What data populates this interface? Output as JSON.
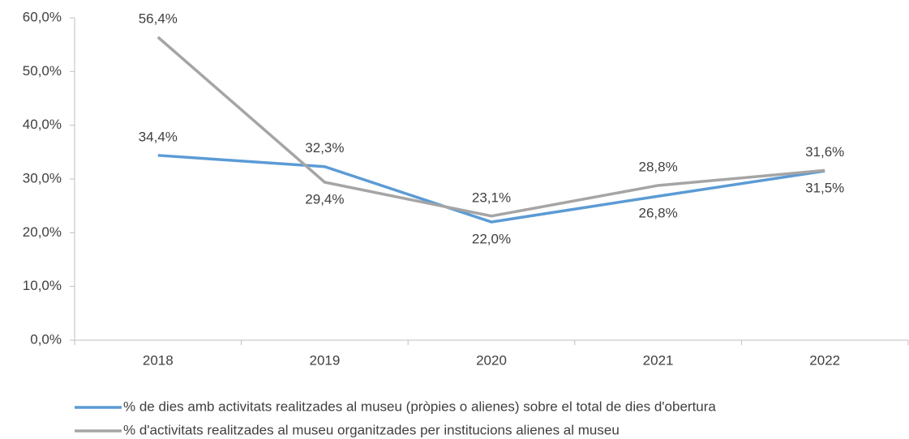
{
  "chart_data": {
    "type": "line",
    "categories": [
      "2018",
      "2019",
      "2020",
      "2021",
      "2022"
    ],
    "series": [
      {
        "name": "% de dies amb activitats realitzades al museu (pròpies o alienes) sobre el total de dies d'obertura",
        "color": "#5b9bd5",
        "values": [
          34.4,
          32.3,
          22.0,
          26.8,
          31.5
        ],
        "value_labels": [
          "34,4%",
          "32,3%",
          "22,0%",
          "26,8%",
          "31,5%"
        ]
      },
      {
        "name": "% d'activitats realitzades al museu organitzades per institucions alienes al museu",
        "color": "#a5a5a5",
        "values": [
          56.4,
          29.4,
          23.1,
          28.8,
          31.6
        ],
        "value_labels": [
          "56,4%",
          "29,4%",
          "23,1%",
          "28,8%",
          "31,6%"
        ]
      }
    ],
    "ylim": [
      0,
      60
    ],
    "yticks": [
      {
        "value": 0,
        "label": "0,0%"
      },
      {
        "value": 10,
        "label": "10,0%"
      },
      {
        "value": 20,
        "label": "20,0%"
      },
      {
        "value": 30,
        "label": "30,0%"
      },
      {
        "value": 40,
        "label": "40,0%"
      },
      {
        "value": 50,
        "label": "50,0%"
      },
      {
        "value": 60,
        "label": "60,0%"
      }
    ],
    "legend": "bottom"
  }
}
